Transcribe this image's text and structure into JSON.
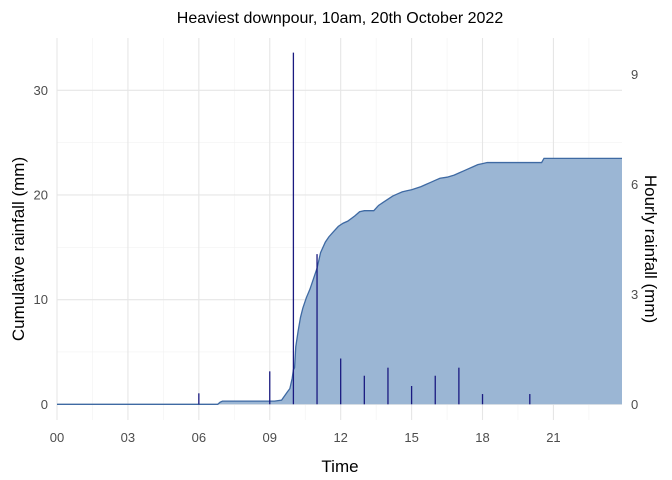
{
  "chart_data": {
    "type": "area",
    "title": "Heaviest downpour, 10am, 20th October 2022",
    "xlabel": "Time",
    "ylabel": "Cumulative rainfall (mm)",
    "y2label": "Hourly rainfall (mm)",
    "x_ticks": [
      "00",
      "03",
      "06",
      "09",
      "12",
      "15",
      "18",
      "21"
    ],
    "x_tick_hours": [
      0,
      3,
      6,
      9,
      12,
      15,
      18,
      21
    ],
    "xlim": [
      0,
      23.9
    ],
    "ylim": [
      -1.5,
      35
    ],
    "y_ticks": [
      0,
      10,
      20,
      30
    ],
    "y2_ticks": [
      0,
      3,
      6,
      9
    ],
    "y2_scale_per_mm": 3.5,
    "grid": true,
    "colors": {
      "area_fill": "#9bb6d4",
      "area_line": "#3f6aa3",
      "bars": "#1a1a80"
    },
    "series": [
      {
        "name": "Cumulative rainfall",
        "x": [
          0,
          6.8,
          6.9,
          7.0,
          9.0,
          9.2,
          9.5,
          9.75,
          9.85,
          9.95,
          10.0,
          10.05,
          10.1,
          10.2,
          10.3,
          10.4,
          10.55,
          10.7,
          10.85,
          11.0,
          11.15,
          11.35,
          11.5,
          11.7,
          11.9,
          12.1,
          12.3,
          12.6,
          12.8,
          13.0,
          13.4,
          13.6,
          13.8,
          14.0,
          14.2,
          14.4,
          14.6,
          14.8,
          15.0,
          15.4,
          15.6,
          15.8,
          16.0,
          16.2,
          16.5,
          16.8,
          17.0,
          17.2,
          17.4,
          17.6,
          17.8,
          18.0,
          18.2,
          18.5,
          19.5,
          20.0,
          20.5,
          20.6,
          21.0,
          22.0,
          23.9
        ],
        "values": [
          0,
          0,
          0.2,
          0.3,
          0.3,
          0.3,
          0.4,
          1.2,
          1.5,
          2.5,
          3.3,
          3.5,
          5.5,
          7.0,
          8.3,
          9.2,
          10.2,
          11.0,
          12.0,
          13.0,
          14.5,
          15.5,
          16.0,
          16.5,
          17.0,
          17.3,
          17.5,
          18.0,
          18.4,
          18.5,
          18.5,
          19.0,
          19.3,
          19.6,
          19.9,
          20.1,
          20.3,
          20.4,
          20.5,
          20.8,
          21.0,
          21.2,
          21.4,
          21.6,
          21.7,
          21.9,
          22.1,
          22.3,
          22.5,
          22.7,
          22.9,
          23.0,
          23.1,
          23.1,
          23.1,
          23.1,
          23.1,
          23.5,
          23.5,
          23.5,
          23.5
        ]
      },
      {
        "name": "Hourly rainfall",
        "x": [
          6,
          9,
          10,
          11,
          12,
          13,
          14,
          15,
          16,
          17,
          18,
          20
        ],
        "values": [
          0.3,
          0.9,
          9.6,
          4.1,
          1.25,
          0.78,
          1.0,
          0.5,
          0.78,
          1.0,
          0.28,
          0.28
        ]
      }
    ]
  }
}
